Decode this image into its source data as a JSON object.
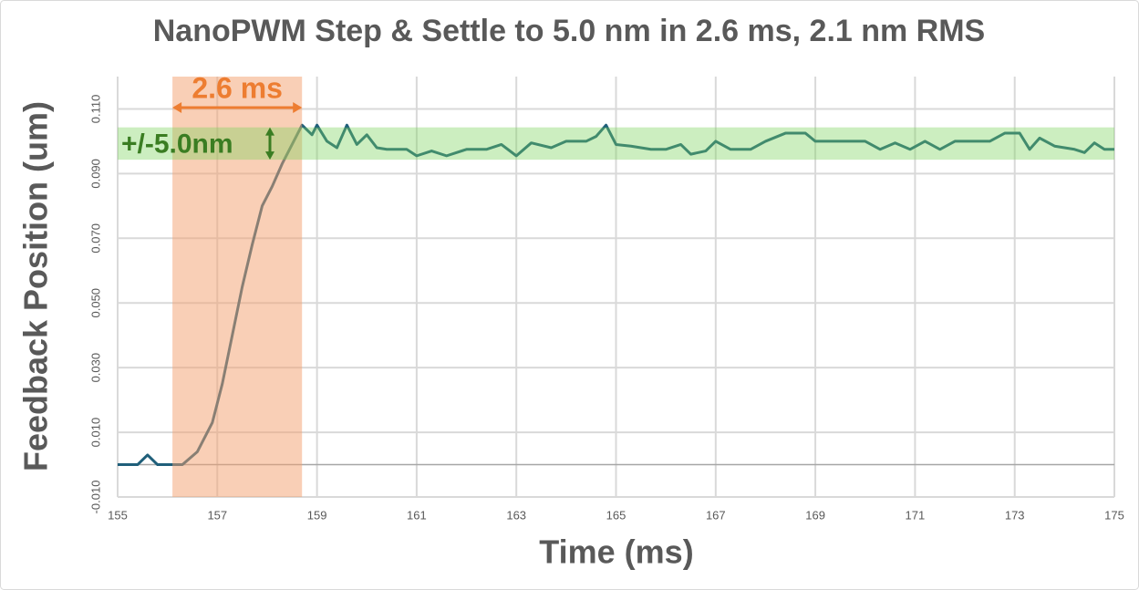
{
  "chart_data": {
    "type": "line",
    "title": "NanoPWM Step & Settle to 5.0 nm in 2.6 ms, 2.1 nm RMS",
    "x_label": "Time (ms)",
    "y_label": "Feedback Position (um)",
    "xlim": [
      155,
      175
    ],
    "xticks": [
      155,
      157,
      159,
      161,
      163,
      165,
      167,
      169,
      171,
      173,
      175
    ],
    "ylim": [
      -0.01,
      0.12
    ],
    "yticks": [
      {
        "value": -0.01,
        "label": "-0.010"
      },
      {
        "value": 0.01,
        "label": "0.010"
      },
      {
        "value": 0.03,
        "label": "0.030"
      },
      {
        "value": 0.05,
        "label": "0.050"
      },
      {
        "value": 0.07,
        "label": "0.070"
      },
      {
        "value": 0.09,
        "label": "0.090"
      },
      {
        "value": 0.11,
        "label": "0.110"
      }
    ],
    "grid": true,
    "annotations": {
      "settle_time": "2.6 ms",
      "tolerance": "+/-5.0nm"
    },
    "settle_window_x": [
      156.1,
      158.7
    ],
    "tolerance_band_y": [
      0.0943,
      0.1043
    ],
    "series": [
      {
        "color": "#1f5f7a",
        "x": [
          155.0,
          155.4,
          155.6,
          155.8,
          156.0,
          156.3,
          156.6,
          156.9,
          157.1,
          157.3,
          157.5,
          157.7,
          157.9,
          158.1,
          158.3,
          158.5,
          158.7,
          158.9,
          159.0,
          159.2,
          159.4,
          159.6,
          159.8,
          160.0,
          160.2,
          160.4,
          160.8,
          161.0,
          161.3,
          161.6,
          162.0,
          162.4,
          162.7,
          163.0,
          163.3,
          163.7,
          164.0,
          164.4,
          164.6,
          164.8,
          165.0,
          165.3,
          165.7,
          166.0,
          166.3,
          166.5,
          166.8,
          167.0,
          167.3,
          167.7,
          168.0,
          168.4,
          168.8,
          169.0,
          169.5,
          170.0,
          170.3,
          170.6,
          170.9,
          171.2,
          171.5,
          171.8,
          172.2,
          172.5,
          172.8,
          173.1,
          173.3,
          173.5,
          173.8,
          174.2,
          174.4,
          174.6,
          174.8,
          175.0
        ],
        "values": [
          0.0,
          0.0,
          0.003,
          0.0,
          0.0,
          0.0,
          0.004,
          0.013,
          0.025,
          0.04,
          0.055,
          0.068,
          0.08,
          0.086,
          0.093,
          0.099,
          0.105,
          0.102,
          0.105,
          0.1,
          0.098,
          0.105,
          0.099,
          0.102,
          0.098,
          0.0975,
          0.0975,
          0.0955,
          0.097,
          0.0955,
          0.0975,
          0.0975,
          0.099,
          0.0955,
          0.0995,
          0.098,
          0.1,
          0.1,
          0.1015,
          0.105,
          0.099,
          0.0985,
          0.0975,
          0.0975,
          0.099,
          0.096,
          0.097,
          0.1,
          0.0975,
          0.0975,
          0.1,
          0.1025,
          0.1025,
          0.1,
          0.1,
          0.1,
          0.0975,
          0.0995,
          0.0975,
          0.1,
          0.0975,
          0.1,
          0.1,
          0.1,
          0.1025,
          0.1025,
          0.0975,
          0.101,
          0.0985,
          0.0975,
          0.0965,
          0.0995,
          0.0975,
          0.0975
        ]
      }
    ]
  }
}
